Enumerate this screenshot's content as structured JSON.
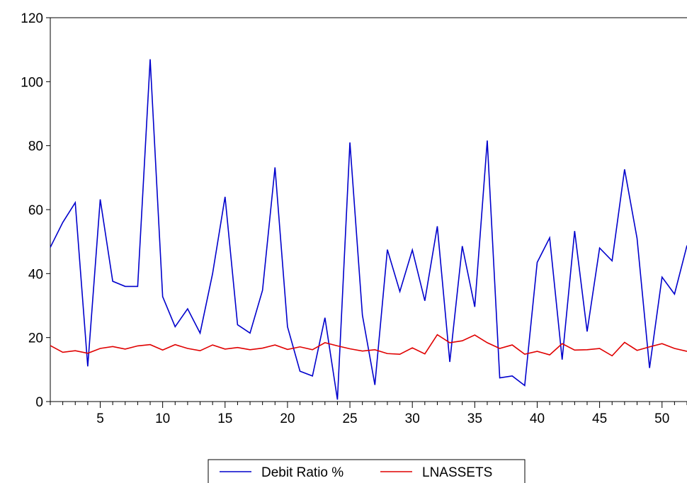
{
  "chart_data": {
    "type": "line",
    "title": "",
    "xlabel": "",
    "ylabel": "",
    "xlim": [
      1,
      52
    ],
    "ylim": [
      0,
      120
    ],
    "y_ticks": [
      0,
      20,
      40,
      60,
      80,
      100,
      120
    ],
    "x_ticks": [
      5,
      10,
      15,
      20,
      25,
      30,
      35,
      40,
      45,
      50
    ],
    "grid": false,
    "legend_position": "bottom-center",
    "x": [
      1,
      2,
      3,
      4,
      5,
      6,
      7,
      8,
      9,
      10,
      11,
      12,
      13,
      14,
      15,
      16,
      17,
      18,
      19,
      20,
      21,
      22,
      23,
      24,
      25,
      26,
      27,
      28,
      29,
      30,
      31,
      32,
      33,
      34,
      35,
      36,
      37,
      38,
      39,
      40,
      41,
      42,
      43,
      44,
      45,
      46,
      47,
      48,
      49,
      50,
      51,
      52
    ],
    "series": [
      {
        "name": "Debit Ratio %",
        "color": "#0000cc",
        "values": [
          48.2,
          56,
          62.2,
          11,
          63.2,
          37.6,
          36,
          36,
          107,
          32.8,
          23.4,
          29,
          21.4,
          40,
          64,
          24,
          21.4,
          34.8,
          73.2,
          23.4,
          9.5,
          8,
          26.2,
          0.6,
          81,
          27,
          5.2,
          47.5,
          34.4,
          47.4,
          31.5,
          54.8,
          12.4,
          48.6,
          29.6,
          81.6,
          7.4,
          8,
          5,
          43.5,
          51.2,
          13.1,
          53.3,
          21.9,
          48,
          44,
          72.6,
          51,
          10.5,
          38.9,
          33.6,
          48.8
        ]
      },
      {
        "name": "LNASSETS",
        "color": "#e00000",
        "values": [
          17.5,
          15.4,
          15.9,
          15.1,
          16.6,
          17.2,
          16.4,
          17.4,
          17.8,
          16.1,
          17.8,
          16.6,
          15.9,
          17.7,
          16.4,
          16.9,
          16.2,
          16.7,
          17.7,
          16.3,
          17.1,
          16.2,
          18.4,
          17.4,
          16.5,
          15.8,
          16.2,
          15,
          14.8,
          16.8,
          14.9,
          20.9,
          18.4,
          19,
          20.8,
          18.4,
          16.6,
          17.7,
          14.8,
          15.7,
          14.6,
          18.1,
          16.1,
          16.2,
          16.6,
          14.3,
          18.5,
          16,
          17.1,
          18.1,
          16.6,
          15.7
        ]
      }
    ]
  }
}
